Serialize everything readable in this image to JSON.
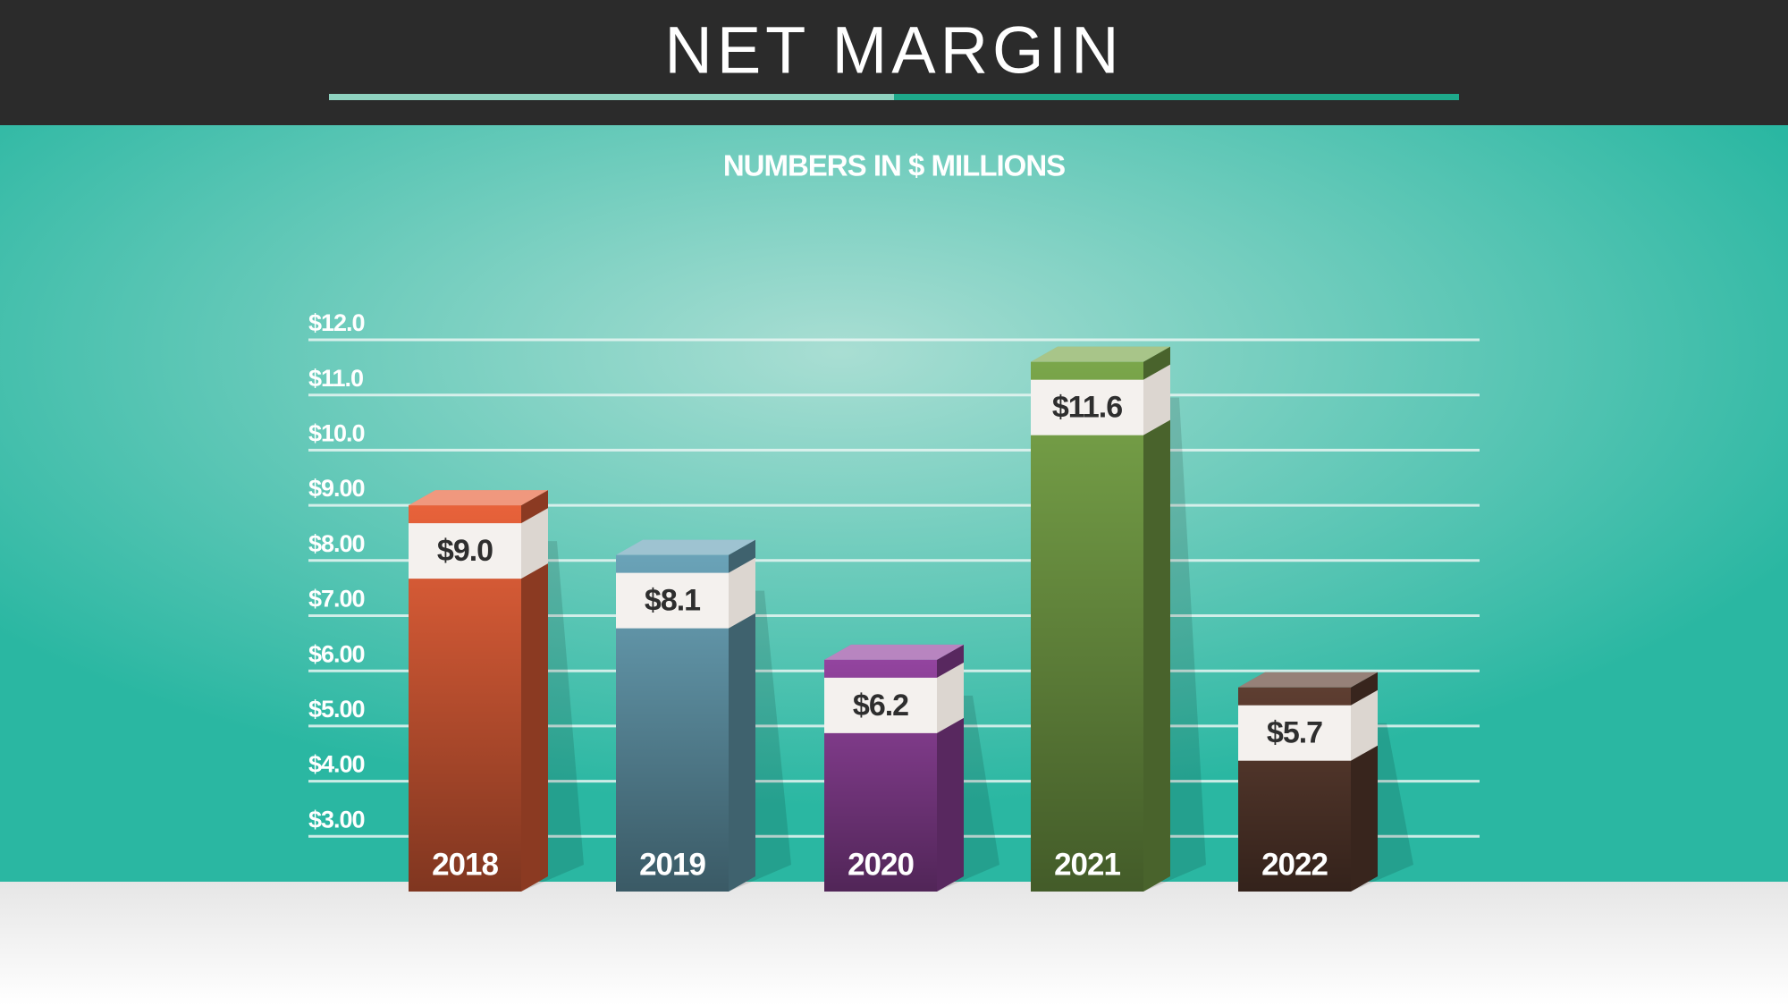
{
  "chart_data": {
    "type": "bar3d",
    "title": "NET MARGIN",
    "subtitle": "NUMBERS IN $ MILLIONS",
    "categories": [
      "2018",
      "2019",
      "2020",
      "2021",
      "2022"
    ],
    "values": [
      9.0,
      8.1,
      6.2,
      11.6,
      5.7
    ],
    "value_labels": [
      "$9.0",
      "$8.1",
      "$6.2",
      "$11.6",
      "$5.7"
    ],
    "colors": [
      "#e8623a",
      "#6aa3b8",
      "#93449f",
      "#7aa64a",
      "#5e3e31"
    ],
    "ylim": [
      2,
      12
    ],
    "yticks": [
      {
        "value": 3,
        "label": "$3.00"
      },
      {
        "value": 4,
        "label": "$4.00"
      },
      {
        "value": 5,
        "label": "$5.00"
      },
      {
        "value": 6,
        "label": "$6.00"
      },
      {
        "value": 7,
        "label": "$7.00"
      },
      {
        "value": 8,
        "label": "$8.00"
      },
      {
        "value": 9,
        "label": "$9.00"
      },
      {
        "value": 10,
        "label": "$10.0"
      },
      {
        "value": 11,
        "label": "$11.0"
      },
      {
        "value": 12,
        "label": "$12.0"
      }
    ],
    "grid": true
  }
}
